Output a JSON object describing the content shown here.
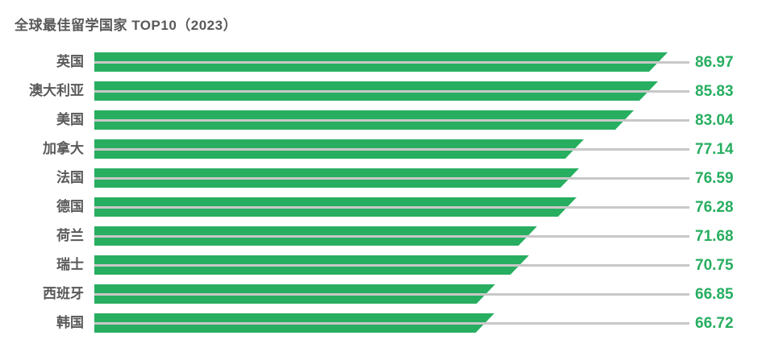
{
  "chart_data": {
    "type": "bar",
    "orientation": "horizontal",
    "title": "全球最佳留学国家 TOP10（2023）",
    "categories": [
      "英国",
      "澳大利亚",
      "美国",
      "加拿大",
      "法国",
      "德国",
      "荷兰",
      "瑞士",
      "西班牙",
      "韩国"
    ],
    "values": [
      86.97,
      85.83,
      83.04,
      77.14,
      76.59,
      76.28,
      71.68,
      70.75,
      66.85,
      66.72
    ],
    "xlim": [
      20,
      87
    ],
    "grid": "per-category horizontal connector lines",
    "legend": "none",
    "colors": {
      "bar": "#27ae60",
      "value_label": "#27ae60",
      "category_label": "#595959",
      "title": "#595959",
      "connector_line": "#c8c8c8",
      "background": "#ffffff"
    }
  }
}
